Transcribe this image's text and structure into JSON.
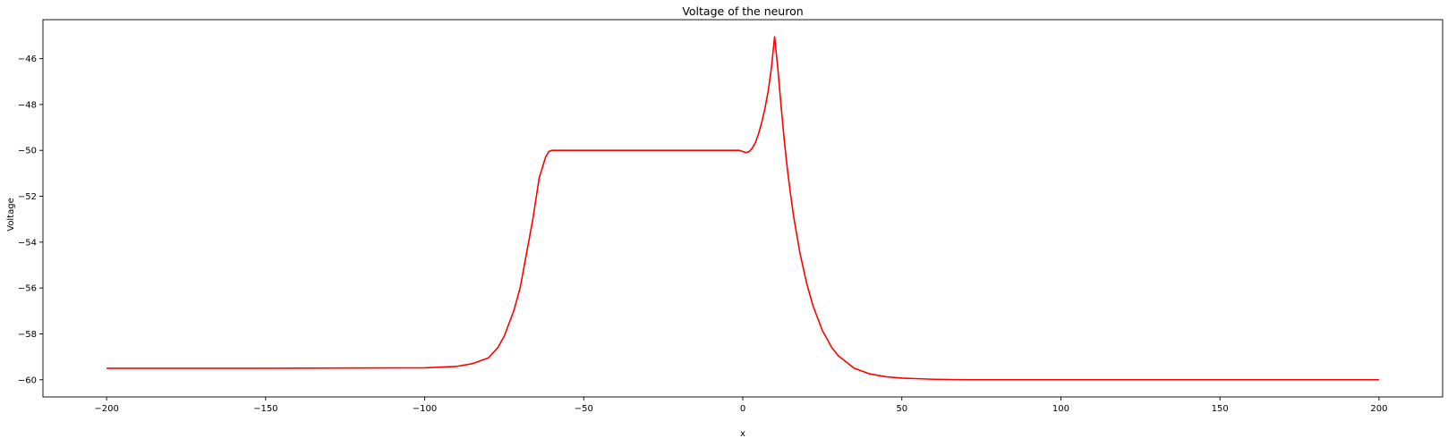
{
  "chart_data": {
    "type": "line",
    "title": "Voltage of the neuron",
    "xlabel": "x",
    "ylabel": "Voltage",
    "xlim": [
      -220,
      220
    ],
    "ylim": [
      -60.75,
      -44.3
    ],
    "xticks": [
      -200,
      -150,
      -100,
      -50,
      0,
      50,
      100,
      150,
      200
    ],
    "yticks": [
      -60,
      -58,
      -56,
      -54,
      -52,
      -50,
      -48,
      -46
    ],
    "grid": false,
    "series": [
      {
        "name": "Voltage",
        "color": "#ff0000",
        "x": [
          -200,
          -150,
          -100,
          -90,
          -85,
          -80,
          -77,
          -75,
          -72,
          -70,
          -68,
          -66,
          -64,
          -62,
          -61,
          -60,
          -55,
          -30,
          -5,
          -1,
          0,
          1,
          2,
          3,
          4,
          5,
          6,
          7,
          8,
          9,
          10,
          11,
          12,
          13,
          14,
          15,
          16,
          18,
          20,
          22,
          25,
          28,
          30,
          35,
          40,
          45,
          50,
          60,
          70,
          80,
          100,
          150,
          200
        ],
        "y": [
          -59.5,
          -59.5,
          -59.48,
          -59.42,
          -59.3,
          -59.05,
          -58.6,
          -58.1,
          -57.0,
          -56.0,
          -54.5,
          -53.0,
          -51.2,
          -50.3,
          -50.05,
          -50.0,
          -50.0,
          -50.0,
          -50.0,
          -50.0,
          -50.05,
          -50.1,
          -50.05,
          -49.9,
          -49.65,
          -49.25,
          -48.75,
          -48.15,
          -47.4,
          -46.4,
          -45.05,
          -46.4,
          -48.0,
          -49.5,
          -50.8,
          -51.9,
          -52.9,
          -54.5,
          -55.75,
          -56.75,
          -57.85,
          -58.6,
          -58.95,
          -59.5,
          -59.75,
          -59.87,
          -59.93,
          -59.98,
          -60.0,
          -60.0,
          -60.0,
          -60.0,
          -60.0
        ]
      }
    ]
  }
}
